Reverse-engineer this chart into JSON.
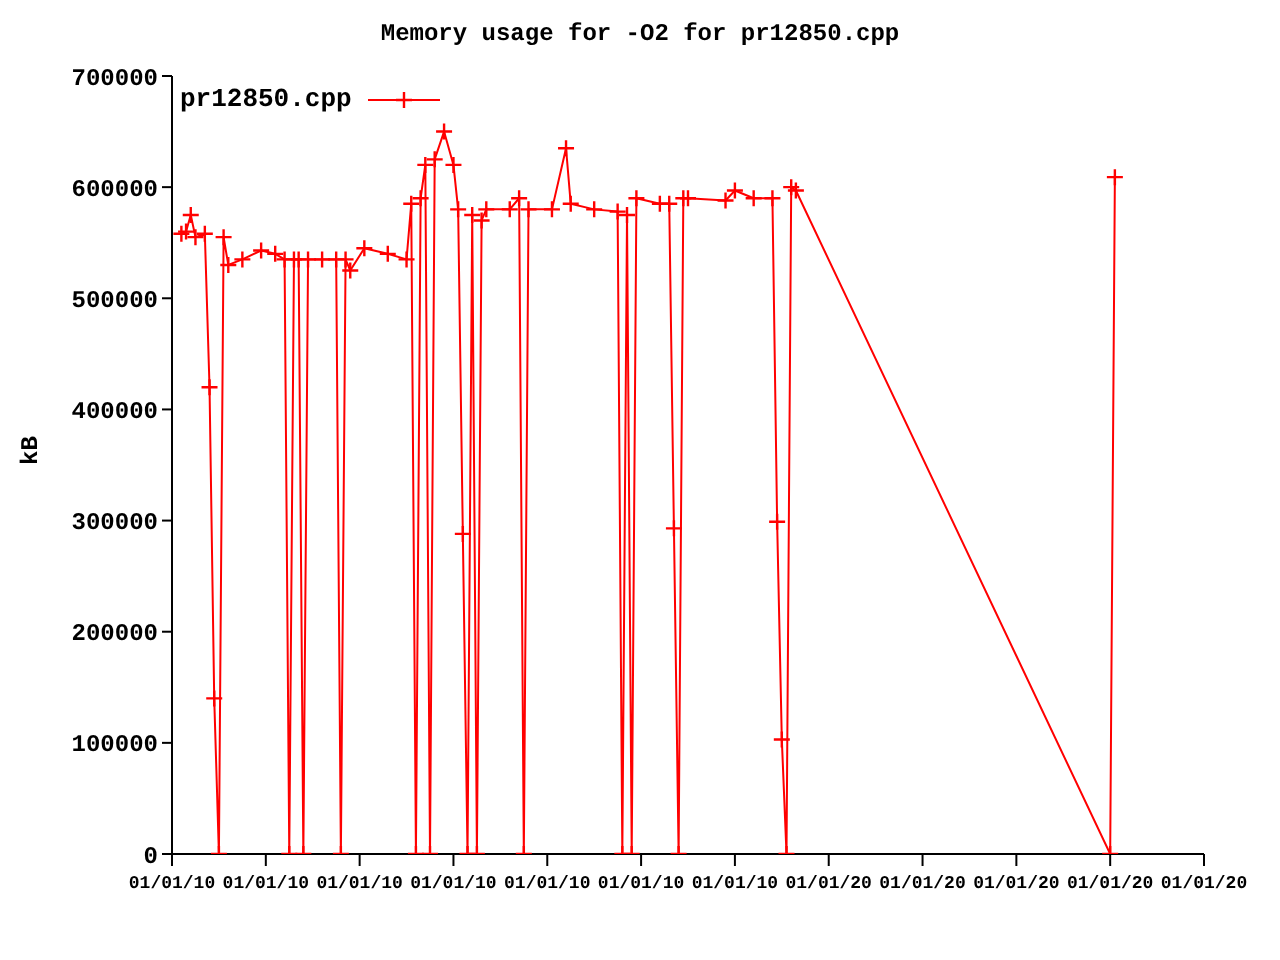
{
  "chart_data": {
    "type": "line",
    "title": "Memory usage for -O2 for pr12850.cpp",
    "ylabel": "kB",
    "categories": [
      "01/01/10",
      null,
      null,
      null,
      null,
      null,
      null,
      null,
      null,
      null,
      null,
      null,
      null,
      null,
      null,
      null,
      null,
      null,
      null,
      null,
      "01/01/10",
      null,
      null,
      null,
      null,
      null,
      null,
      null,
      null,
      null,
      null,
      null,
      null,
      null,
      null,
      null,
      null,
      null,
      null,
      null,
      "01/01/10",
      null,
      null,
      null,
      null,
      null,
      null,
      null,
      null,
      null,
      null,
      null,
      null,
      null,
      null,
      null,
      null,
      null,
      null,
      null,
      "01/01/10",
      null,
      null,
      null,
      null,
      null,
      null,
      null,
      null,
      null,
      null,
      null,
      null,
      null,
      null,
      null,
      null,
      null,
      null,
      null,
      "01/01/10",
      null,
      null,
      null,
      null,
      null,
      null,
      null,
      null,
      null,
      null,
      null,
      null,
      null,
      null,
      null,
      null,
      null,
      null,
      null,
      "01/01/10",
      null,
      null,
      null,
      null,
      null,
      null,
      null,
      null,
      null,
      null,
      null,
      null,
      null,
      null,
      null,
      null,
      null,
      null,
      null,
      "01/01/10",
      null,
      null,
      null,
      null,
      null,
      null,
      null,
      null,
      null,
      null,
      null,
      null,
      null,
      null,
      null,
      null,
      null,
      null,
      null,
      "01/01/20",
      null,
      null,
      null,
      null,
      null,
      null,
      null,
      null,
      null,
      null,
      null,
      null,
      null,
      null,
      null,
      null,
      null,
      null,
      null,
      "01/01/20",
      null,
      null,
      null,
      null,
      null,
      null,
      null,
      null,
      null,
      null,
      null,
      null,
      null,
      null,
      null,
      null,
      null,
      null,
      null,
      "01/01/20",
      null,
      null,
      null,
      null,
      null,
      null,
      null,
      null,
      null,
      null,
      null,
      null,
      null,
      null,
      null,
      null,
      null,
      null,
      null,
      "01/01/20",
      null,
      null,
      null,
      null,
      null,
      null,
      null,
      null,
      null,
      null,
      null,
      null,
      null,
      null,
      null,
      null,
      null,
      null,
      null,
      "01/01/20"
    ],
    "series": [
      {
        "name": "pr12850.cpp",
        "color": "#ff0000",
        "values": [
          null,
          null,
          558000,
          560000,
          575000,
          555000,
          null,
          558000,
          420000,
          140000,
          0,
          555000,
          530000,
          null,
          null,
          535000,
          null,
          null,
          null,
          543000,
          null,
          null,
          540000,
          null,
          535000,
          0,
          535000,
          535000,
          0,
          535000,
          null,
          null,
          535000,
          null,
          null,
          535000,
          0,
          535000,
          525000,
          null,
          null,
          545000,
          null,
          null,
          null,
          null,
          540000,
          null,
          null,
          null,
          535000,
          585000,
          0,
          590000,
          620000,
          0,
          625000,
          null,
          650000,
          null,
          620000,
          580000,
          288000,
          0,
          575000,
          0,
          570000,
          580000,
          null,
          null,
          null,
          null,
          580000,
          null,
          590000,
          0,
          580000,
          null,
          null,
          null,
          null,
          580000,
          null,
          null,
          635000,
          585000,
          null,
          null,
          null,
          null,
          580000,
          null,
          null,
          null,
          null,
          578000,
          0,
          575000,
          0,
          590000,
          null,
          null,
          null,
          null,
          585000,
          null,
          585000,
          293000,
          0,
          590000,
          590000,
          null,
          null,
          null,
          null,
          null,
          null,
          null,
          588000,
          null,
          597000,
          null,
          null,
          null,
          590000,
          null,
          null,
          null,
          590000,
          299000,
          103000,
          0,
          600000,
          597000,
          null,
          null,
          null,
          null,
          null,
          null,
          null,
          null,
          null,
          null,
          null,
          null,
          null,
          null,
          null,
          null,
          null,
          null,
          null,
          null,
          null,
          null,
          null,
          null,
          null,
          null,
          null,
          null,
          null,
          null,
          null,
          null,
          null,
          null,
          null,
          null,
          null,
          null,
          null,
          null,
          null,
          null,
          null,
          null,
          null,
          null,
          null,
          null,
          null,
          null,
          null,
          null,
          null,
          null,
          null,
          null,
          null,
          null,
          null,
          null,
          null,
          null,
          null,
          null,
          null,
          null,
          0,
          609000,
          null,
          null,
          null,
          null,
          null,
          null,
          null,
          null,
          null,
          null,
          null,
          null,
          null,
          null,
          null,
          null,
          null,
          null,
          null
        ]
      }
    ],
    "ylim": [
      0,
      700000
    ],
    "yticks": [
      0,
      100000,
      200000,
      300000,
      400000,
      500000,
      600000,
      700000
    ],
    "legend": "top left",
    "marker": "cross",
    "line_style": "solid",
    "grid": false
  }
}
